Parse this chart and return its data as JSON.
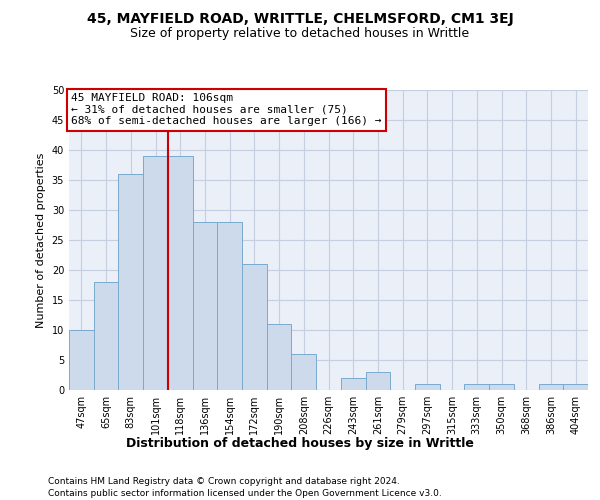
{
  "title1": "45, MAYFIELD ROAD, WRITTLE, CHELMSFORD, CM1 3EJ",
  "title2": "Size of property relative to detached houses in Writtle",
  "xlabel": "Distribution of detached houses by size in Writtle",
  "ylabel": "Number of detached properties",
  "categories": [
    "47sqm",
    "65sqm",
    "83sqm",
    "101sqm",
    "118sqm",
    "136sqm",
    "154sqm",
    "172sqm",
    "190sqm",
    "208sqm",
    "226sqm",
    "243sqm",
    "261sqm",
    "279sqm",
    "297sqm",
    "315sqm",
    "333sqm",
    "350sqm",
    "368sqm",
    "386sqm",
    "404sqm"
  ],
  "values": [
    10,
    18,
    36,
    39,
    39,
    28,
    28,
    21,
    11,
    6,
    0,
    2,
    3,
    0,
    1,
    0,
    1,
    1,
    0,
    1,
    1
  ],
  "bar_color": "#ccdaeb",
  "bar_edge_color": "#7aaacf",
  "vline_x": 3.5,
  "ylim": [
    0,
    50
  ],
  "yticks": [
    0,
    5,
    10,
    15,
    20,
    25,
    30,
    35,
    40,
    45,
    50
  ],
  "annotation_text": "45 MAYFIELD ROAD: 106sqm\n← 31% of detached houses are smaller (75)\n68% of semi-detached houses are larger (166) →",
  "vline_color": "#cc0000",
  "annotation_edge_color": "#cc0000",
  "grid_color": "#c5cfe0",
  "bg_color": "#eaeff8",
  "footer1": "Contains HM Land Registry data © Crown copyright and database right 2024.",
  "footer2": "Contains public sector information licensed under the Open Government Licence v3.0.",
  "title1_fontsize": 10,
  "title2_fontsize": 9,
  "xlabel_fontsize": 9,
  "ylabel_fontsize": 8,
  "tick_fontsize": 7,
  "footer_fontsize": 6.5,
  "annot_fontsize": 8
}
